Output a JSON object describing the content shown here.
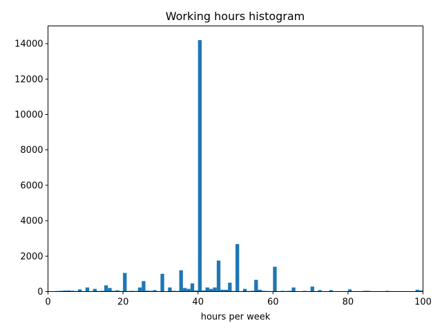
{
  "chart_data": {
    "type": "bar",
    "title": "Working hours histogram",
    "xlabel": "hours per week",
    "ylabel": "",
    "xlim": [
      0,
      100
    ],
    "ylim": [
      0,
      15000
    ],
    "bin_width": 0.98,
    "xticks": [
      0,
      20,
      40,
      60,
      80,
      100
    ],
    "yticks": [
      0,
      2000,
      4000,
      6000,
      8000,
      10000,
      12000,
      14000
    ],
    "grid": false,
    "legend": "none",
    "bar_color": "#1f77b4",
    "bins": [
      {
        "x": 1,
        "value": 20
      },
      {
        "x": 2,
        "value": 30
      },
      {
        "x": 3,
        "value": 40
      },
      {
        "x": 4,
        "value": 55
      },
      {
        "x": 5,
        "value": 60
      },
      {
        "x": 6,
        "value": 45
      },
      {
        "x": 7,
        "value": 30
      },
      {
        "x": 8,
        "value": 120
      },
      {
        "x": 9,
        "value": 20
      },
      {
        "x": 10,
        "value": 230
      },
      {
        "x": 11,
        "value": 15
      },
      {
        "x": 12,
        "value": 150
      },
      {
        "x": 13,
        "value": 30
      },
      {
        "x": 14,
        "value": 40
      },
      {
        "x": 15,
        "value": 350
      },
      {
        "x": 16,
        "value": 200
      },
      {
        "x": 17,
        "value": 40
      },
      {
        "x": 18,
        "value": 70
      },
      {
        "x": 19,
        "value": 30
      },
      {
        "x": 20,
        "value": 1050
      },
      {
        "x": 21,
        "value": 30
      },
      {
        "x": 22,
        "value": 40
      },
      {
        "x": 23,
        "value": 30
      },
      {
        "x": 24,
        "value": 230
      },
      {
        "x": 25,
        "value": 590
      },
      {
        "x": 26,
        "value": 50
      },
      {
        "x": 27,
        "value": 40
      },
      {
        "x": 28,
        "value": 80
      },
      {
        "x": 29,
        "value": 20
      },
      {
        "x": 30,
        "value": 1000
      },
      {
        "x": 31,
        "value": 20
      },
      {
        "x": 32,
        "value": 230
      },
      {
        "x": 33,
        "value": 40
      },
      {
        "x": 34,
        "value": 30
      },
      {
        "x": 35,
        "value": 1200
      },
      {
        "x": 36,
        "value": 200
      },
      {
        "x": 37,
        "value": 150
      },
      {
        "x": 38,
        "value": 460
      },
      {
        "x": 39,
        "value": 60
      },
      {
        "x": 40,
        "value": 14200
      },
      {
        "x": 41,
        "value": 60
      },
      {
        "x": 42,
        "value": 230
      },
      {
        "x": 43,
        "value": 150
      },
      {
        "x": 44,
        "value": 230
      },
      {
        "x": 45,
        "value": 1750
      },
      {
        "x": 46,
        "value": 100
      },
      {
        "x": 47,
        "value": 100
      },
      {
        "x": 48,
        "value": 500
      },
      {
        "x": 49,
        "value": 30
      },
      {
        "x": 50,
        "value": 2680
      },
      {
        "x": 51,
        "value": 20
      },
      {
        "x": 52,
        "value": 150
      },
      {
        "x": 53,
        "value": 30
      },
      {
        "x": 54,
        "value": 40
      },
      {
        "x": 55,
        "value": 660
      },
      {
        "x": 56,
        "value": 100
      },
      {
        "x": 57,
        "value": 40
      },
      {
        "x": 58,
        "value": 30
      },
      {
        "x": 59,
        "value": 15
      },
      {
        "x": 60,
        "value": 1400
      },
      {
        "x": 61,
        "value": 15
      },
      {
        "x": 62,
        "value": 40
      },
      {
        "x": 63,
        "value": 30
      },
      {
        "x": 64,
        "value": 40
      },
      {
        "x": 65,
        "value": 230
      },
      {
        "x": 66,
        "value": 20
      },
      {
        "x": 67,
        "value": 15
      },
      {
        "x": 68,
        "value": 40
      },
      {
        "x": 70,
        "value": 280
      },
      {
        "x": 72,
        "value": 80
      },
      {
        "x": 75,
        "value": 80
      },
      {
        "x": 77,
        "value": 10
      },
      {
        "x": 80,
        "value": 120
      },
      {
        "x": 84,
        "value": 40
      },
      {
        "x": 85,
        "value": 40
      },
      {
        "x": 90,
        "value": 40
      },
      {
        "x": 98,
        "value": 100
      },
      {
        "x": 99,
        "value": 60
      }
    ]
  }
}
